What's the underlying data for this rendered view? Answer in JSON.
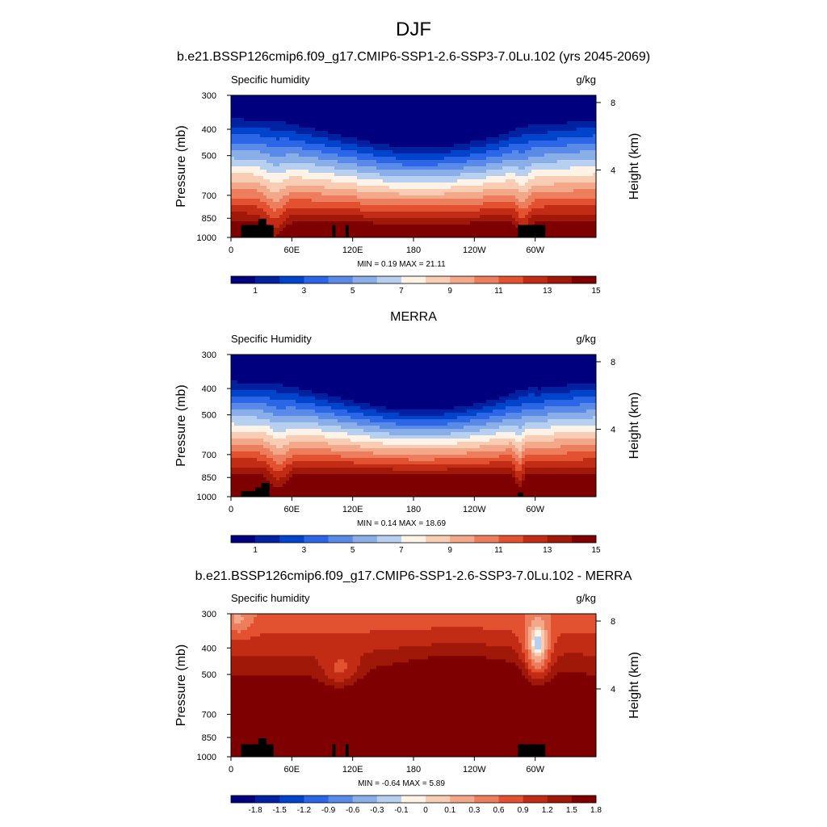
{
  "figure": {
    "title": "DJF",
    "panel_titles": [
      "b.e21.BSSP126cmip6.f09_g17.CMIP6-SSP1-2.6-SSP3-7.0Lu.102 (yrs 2045-2069)",
      "MERRA",
      "b.e21.BSSP126cmip6.f09_g17.CMIP6-SSP1-2.6-SSP3-7.0Lu.102 - MERRA"
    ]
  },
  "chart_data": [
    {
      "type": "heatmap",
      "title": "b.e21.BSSP126cmip6.f09_g17.CMIP6-SSP1-2.6-SSP3-7.0Lu.102 (yrs 2045-2069)",
      "left_label": "Specific humidity",
      "units": "g/kg",
      "ylabel": "Pressure (mb)",
      "y2label": "Height (km)",
      "x_ticks": [
        "0",
        "60E",
        "120E",
        "180",
        "120W",
        "60W"
      ],
      "y_ticks": [
        "300",
        "400",
        "500",
        "700",
        "850",
        "1000"
      ],
      "y2_ticks": [
        "8",
        "4"
      ],
      "stats": {
        "min": "0.19",
        "max": "21.11",
        "text": "MIN =   0.19  MAX =  21.11"
      },
      "colorbar_labels": [
        "1",
        "3",
        "5",
        "7",
        "9",
        "11",
        "13",
        "15"
      ]
    },
    {
      "type": "heatmap",
      "title": "MERRA",
      "left_label": "Specific Humidity",
      "units": "g/kg",
      "ylabel": "Pressure (mb)",
      "y2label": "Height (km)",
      "x_ticks": [
        "0",
        "60E",
        "120E",
        "180",
        "120W",
        "60W"
      ],
      "y_ticks": [
        "300",
        "400",
        "500",
        "700",
        "850",
        "1000"
      ],
      "y2_ticks": [
        "8",
        "4"
      ],
      "stats": {
        "min": "0.14",
        "max": "18.69",
        "text": "MIN =   0.14  MAX =  18.69"
      },
      "colorbar_labels": [
        "1",
        "3",
        "5",
        "7",
        "9",
        "11",
        "13",
        "15"
      ]
    },
    {
      "type": "heatmap",
      "title": "b.e21.BSSP126cmip6.f09_g17.CMIP6-SSP1-2.6-SSP3-7.0Lu.102 - MERRA",
      "left_label": "Specific humidity",
      "units": "g/kg",
      "ylabel": "Pressure (mb)",
      "y2label": "Height (km)",
      "x_ticks": [
        "0",
        "60E",
        "120E",
        "180",
        "120W",
        "60W"
      ],
      "y_ticks": [
        "300",
        "400",
        "500",
        "700",
        "850",
        "1000"
      ],
      "y2_ticks": [
        "8",
        "4"
      ],
      "stats": {
        "min": "-0.64",
        "max": "5.89",
        "text": "MIN =  -0.64  MAX =   5.89"
      },
      "colorbar_labels": [
        "-1.8",
        "-1.5",
        "-1.2",
        "-0.9",
        "-0.6",
        "-0.3",
        "-0.1",
        "0",
        "0.1",
        "0.3",
        "0.6",
        "0.9",
        "1.2",
        "1.5",
        "1.8"
      ]
    }
  ],
  "colormap": [
    "#00007f",
    "#0022a0",
    "#0044cc",
    "#2a66e6",
    "#5a8ae8",
    "#8aaee8",
    "#b8d0f0",
    "#fff2e6",
    "#f8cdb4",
    "#f4a88a",
    "#ec7e5e",
    "#e25230",
    "#c22c14",
    "#a01808",
    "#7f0000"
  ]
}
